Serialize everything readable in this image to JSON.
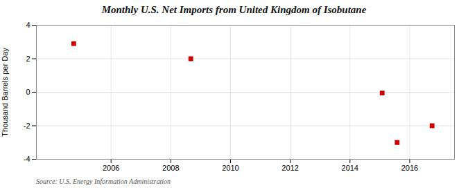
{
  "chart_data": {
    "type": "scatter",
    "title": "Monthly U.S. Net Imports from United Kingdom of Isobutane",
    "ylabel": "Thousand Barrels per Day",
    "source": "Source: U.S. Energy Information Administration",
    "x": [
      2004.75,
      2008.67,
      2015.08,
      2015.58,
      2016.75
    ],
    "values": [
      2.9,
      2.0,
      -0.05,
      -3.0,
      -2.0
    ],
    "color": "#cc0000",
    "marker": "square",
    "xlim": [
      2003.5,
      2017.5
    ],
    "ylim": [
      -4,
      4
    ],
    "xticks": [
      2006,
      2008,
      2010,
      2012,
      2014,
      2016
    ],
    "yticks": [
      -4,
      -2,
      0,
      2,
      4
    ],
    "grid": true
  }
}
